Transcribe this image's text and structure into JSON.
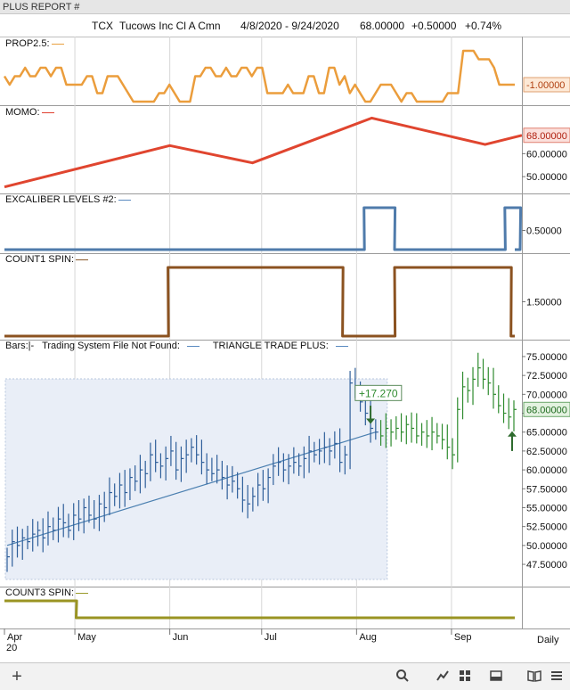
{
  "window": {
    "title": "PLUS REPORT #"
  },
  "header": {
    "symbol": "TCX",
    "company": "Tucows Inc Cl A Cmn",
    "date_range": "4/8/2020 - 9/24/2020",
    "last_price": "68.00000",
    "change": "+0.50000",
    "change_pct": "+0.74%"
  },
  "panels": {
    "prop": {
      "label": "PROP2.5:",
      "value_tag": "-1.00000",
      "label_dash_color": "#e8a040"
    },
    "momo": {
      "label": "MOMO:",
      "value_tag": "68.00000",
      "ticks": [
        "60.00000",
        "50.00000"
      ],
      "label_dash_color": "#e04030"
    },
    "excal": {
      "label": "EXCALIBER LEVELS #2:",
      "ticks": [
        "0.50000"
      ],
      "label_dash_color": "#5a8ac0"
    },
    "count1": {
      "label": "COUNT1 SPIN:",
      "ticks": [
        "1.50000"
      ],
      "label_dash_color": "#8b5a2b"
    },
    "bars": {
      "label_bars": "Bars:|-",
      "label_system": "Trading System File Not Found:",
      "label_triangle": "TRIANGLE TRADE PLUS:",
      "value_tag": "68.00000",
      "gain_annotation": "+17.270",
      "ticks": [
        "75.00000",
        "72.50000",
        "70.00000",
        "65.00000",
        "62.50000",
        "60.00000",
        "57.50000",
        "55.00000",
        "52.50000",
        "50.00000",
        "47.50000"
      ]
    },
    "count3": {
      "label": "COUNT3 SPIN:",
      "label_dash_color": "#9a9a2a"
    }
  },
  "x_axis": {
    "months": [
      "Apr",
      "May",
      "Jun",
      "Jul",
      "Aug",
      "Sep"
    ],
    "year": "20",
    "period": "Daily"
  },
  "colors": {
    "prop_line": "#eb9d3c",
    "momo_line": "#e0452f",
    "excal_line": "#4f7bab",
    "count1_line": "#8b5220",
    "count3_line": "#9a9423",
    "bars_blue": "#2f5f9a",
    "bars_green": "#2e8b2e",
    "trend_line": "#4a7fb0"
  },
  "chart_data": [
    {
      "type": "line",
      "name": "PROP2.5",
      "values": [
        1,
        0,
        1,
        1,
        2,
        1,
        1,
        2,
        2,
        1,
        2,
        2,
        0,
        0,
        0,
        0,
        1,
        1,
        -1,
        -1,
        1,
        1,
        1,
        0,
        -1,
        -2,
        -2,
        -2,
        -2,
        -2,
        -1,
        -1,
        0,
        -1,
        -2,
        -2,
        -2,
        1,
        1,
        2,
        2,
        1,
        1,
        2,
        1,
        1,
        2,
        2,
        1,
        2,
        2,
        -1,
        -1,
        -1,
        -1,
        0,
        -1,
        -1,
        -1,
        1,
        1,
        -1,
        -1,
        2,
        2,
        0,
        1,
        -1,
        0,
        -1,
        -2,
        -2,
        -1,
        0,
        0,
        0,
        -1,
        -2,
        -1,
        -1,
        -2,
        -2,
        -2,
        -2,
        -2,
        -2,
        -1,
        -1,
        -1,
        4,
        4,
        4,
        3,
        3,
        3,
        2,
        0,
        0,
        0,
        0
      ]
    },
    {
      "type": "line",
      "name": "MOMO",
      "x_anchor": [
        "4/8",
        "6/1",
        "6/28",
        "8/6",
        "9/12",
        "9/24"
      ],
      "values": [
        45.5,
        63.5,
        56.0,
        75.5,
        64.0,
        68.0
      ],
      "ylim": [
        45,
        78
      ]
    },
    {
      "type": "line",
      "name": "EXCALIBER LEVELS #2",
      "segments": [
        {
          "from": "4/8",
          "to": "8/3",
          "value": 0
        },
        {
          "from": "8/4",
          "to": "8/13",
          "value": 1
        },
        {
          "from": "8/14",
          "to": "9/18",
          "value": 0
        },
        {
          "from": "9/19",
          "to": "9/23",
          "value": 1
        },
        {
          "from": "9/24",
          "to": "9/24",
          "value": 0
        }
      ]
    },
    {
      "type": "line",
      "name": "COUNT1 SPIN",
      "segments": [
        {
          "from": "4/8",
          "to": "5/31",
          "value": 1
        },
        {
          "from": "6/1",
          "to": "7/27",
          "value": 2
        },
        {
          "from": "7/28",
          "to": "8/13",
          "value": 1
        },
        {
          "from": "8/14",
          "to": "9/20",
          "value": 2
        },
        {
          "from": "9/21",
          "to": "9/24",
          "value": 1
        }
      ]
    },
    {
      "type": "bar",
      "name": "Bars",
      "ylim": [
        45.5,
        77
      ],
      "ticks": [
        47.5,
        50,
        52.5,
        55,
        57.5,
        60,
        62.5,
        65,
        67.5,
        70,
        72.5,
        75
      ],
      "closes": [
        48.5,
        50.5,
        50.0,
        51.0,
        50.5,
        51.5,
        52.0,
        51.0,
        52.5,
        52.0,
        53.5,
        53.0,
        52.0,
        54.0,
        53.5,
        55.0,
        54.0,
        53.5,
        55.5,
        55.0,
        57.0,
        56.5,
        58.0,
        57.0,
        59.0,
        58.5,
        60.0,
        59.5,
        62.0,
        61.0,
        60.5,
        61.5,
        62.5,
        60.0,
        61.5,
        62.0,
        63.0,
        62.0,
        61.0,
        60.0,
        59.5,
        60.0,
        59.0,
        58.0,
        58.5,
        57.5,
        56.0,
        55.5,
        56.5,
        58.0,
        57.5,
        59.0,
        60.5,
        61.0,
        60.0,
        60.5,
        61.0,
        60.5,
        61.5,
        62.5,
        62.0,
        62.5,
        63.0,
        62.5,
        63.5,
        61.0,
        62.0,
        71.5,
        70.5,
        69.0,
        67.5,
        65.5,
        65.0,
        64.5,
        65.5,
        65.0,
        65.5,
        65.0,
        66.0,
        65.5,
        64.5,
        65.0,
        64.5,
        65.0,
        64.5,
        64.0,
        63.0,
        62.0,
        68.0,
        71.0,
        70.5,
        72.0,
        73.5,
        72.0,
        71.5,
        70.0,
        68.5,
        67.5,
        67.0,
        68.0
      ],
      "highlight_range": [
        "4/8",
        "8/11"
      ],
      "gain": "+17.270"
    },
    {
      "type": "line",
      "name": "COUNT3 SPIN",
      "segments": [
        {
          "from": "4/8",
          "to": "5/1",
          "value": 1
        },
        {
          "from": "5/2",
          "to": "9/24",
          "value": 0
        }
      ]
    }
  ]
}
